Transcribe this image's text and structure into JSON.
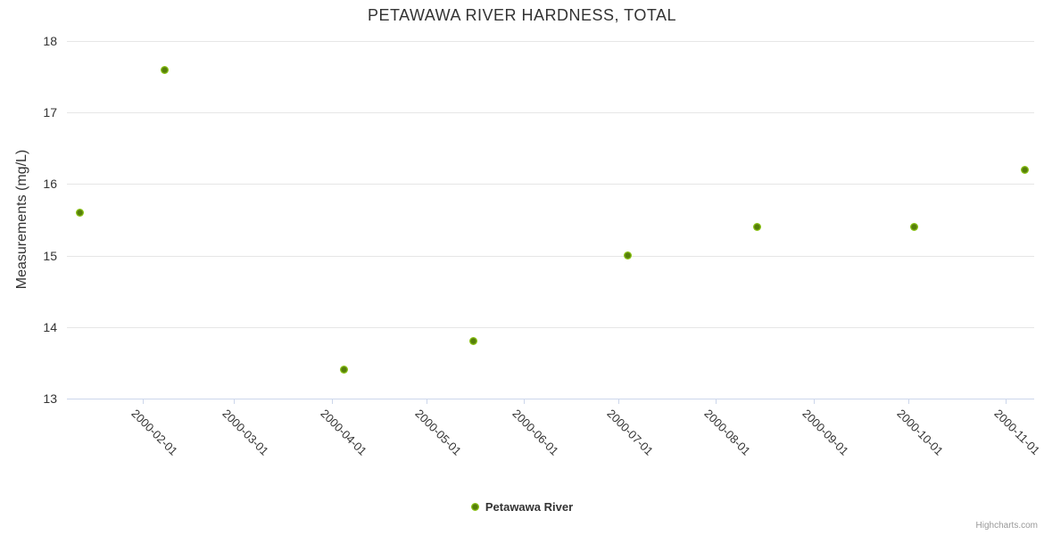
{
  "chart_data": {
    "type": "scatter",
    "title": "PETAWAWA RIVER HARDNESS, TOTAL",
    "xlabel": "",
    "ylabel": "Measurements (mg/L)",
    "ylim": [
      13,
      18
    ],
    "yticks": [
      13,
      14,
      15,
      16,
      17,
      18
    ],
    "xlim": [
      "2000-01-08",
      "2000-11-10"
    ],
    "xticks": [
      "2000-02-01",
      "2000-03-01",
      "2000-04-01",
      "2000-05-01",
      "2000-06-01",
      "2000-07-01",
      "2000-08-01",
      "2000-09-01",
      "2000-10-01",
      "2000-11-01"
    ],
    "x_tick_label_rotation": 45,
    "grid": "horizontal-only",
    "legend_position": "bottom-center",
    "series": [
      {
        "name": "Petawawa River",
        "marker_edge_color": "#8ac215",
        "marker_core_color": "#567f0b",
        "points": [
          {
            "date": "2000-01-12",
            "value": 15.6
          },
          {
            "date": "2000-02-08",
            "value": 17.6
          },
          {
            "date": "2000-04-05",
            "value": 13.4
          },
          {
            "date": "2000-05-16",
            "value": 13.8
          },
          {
            "date": "2000-07-04",
            "value": 15.0
          },
          {
            "date": "2000-08-14",
            "value": 15.4
          },
          {
            "date": "2000-10-03",
            "value": 15.4
          },
          {
            "date": "2000-11-07",
            "value": 16.2
          }
        ]
      }
    ],
    "credits": "Highcharts.com",
    "colors": {
      "title": "#333333",
      "axis_label": "#333333",
      "axis_line": "#ccd6eb",
      "gridline": "#e6e6e6",
      "legend_text": "#333333",
      "credits": "#999999",
      "background": "#ffffff"
    }
  }
}
